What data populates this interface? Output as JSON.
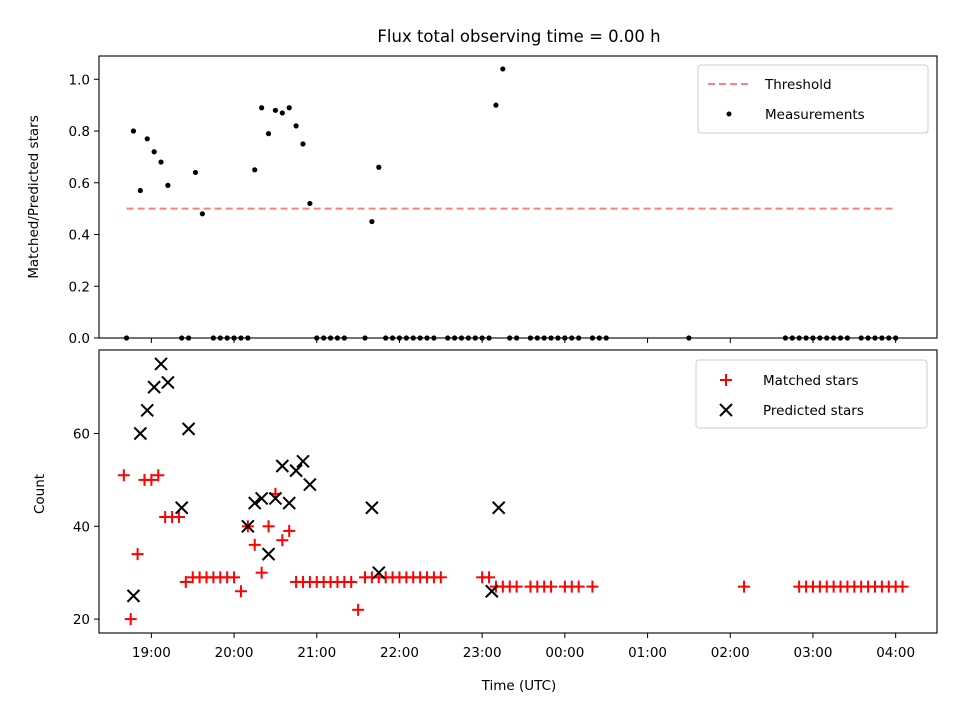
{
  "title": "Flux total observing time = 0.00 h",
  "xlabel": "Time (UTC)",
  "colors": {
    "threshold": "#ff7f7f",
    "measurements": "#000000",
    "matched": "#ff0000",
    "predicted": "#000000"
  },
  "chart_data": [
    {
      "type": "scatter",
      "panel": "top",
      "ylabel": "Matched/Predicted stars",
      "xlim": [
        "18:22",
        "04:30"
      ],
      "ylim": [
        0,
        1.09
      ],
      "yticks": [
        0.0,
        0.2,
        0.4,
        0.6,
        0.8,
        1.0
      ],
      "yticklabels": [
        "0.0",
        "0.2",
        "0.4",
        "0.6",
        "0.8",
        "1.0"
      ],
      "xticks": [
        "19:00",
        "20:00",
        "21:00",
        "22:00",
        "23:00",
        "00:00",
        "01:00",
        "02:00",
        "03:00",
        "04:00"
      ],
      "xticklabels_shown": false,
      "legend": {
        "position": "top-right",
        "entries": [
          "Threshold",
          "Measurements"
        ]
      },
      "series": [
        {
          "name": "Threshold",
          "kind": "dashed-line",
          "x": [
            "18:42",
            "04:00"
          ],
          "y": [
            0.5,
            0.5
          ]
        },
        {
          "name": "Measurements",
          "kind": "points",
          "x": [
            "18:42",
            "18:47",
            "18:52",
            "18:57",
            "19:02",
            "19:07",
            "19:12",
            "19:22",
            "19:27",
            "19:32",
            "19:37",
            "19:45",
            "19:50",
            "19:55",
            "20:00",
            "20:05",
            "20:10",
            "20:15",
            "20:20",
            "20:25",
            "20:30",
            "20:35",
            "20:40",
            "20:45",
            "20:50",
            "20:55",
            "21:00",
            "21:05",
            "21:10",
            "21:15",
            "21:20",
            "21:35",
            "21:40",
            "21:45",
            "21:50",
            "21:55",
            "22:00",
            "22:05",
            "22:10",
            "22:15",
            "22:20",
            "22:25",
            "22:35",
            "22:40",
            "22:45",
            "22:50",
            "22:55",
            "23:00",
            "23:05",
            "23:10",
            "23:15",
            "23:20",
            "23:25",
            "23:35",
            "23:40",
            "23:45",
            "23:50",
            "23:55",
            "00:00",
            "00:05",
            "00:10",
            "00:20",
            "00:25",
            "00:30",
            "01:30",
            "02:40",
            "02:45",
            "02:50",
            "02:55",
            "03:00",
            "03:05",
            "03:10",
            "03:15",
            "03:20",
            "03:25",
            "03:35",
            "03:40",
            "03:45",
            "03:50",
            "03:55",
            "04:00"
          ],
          "y": [
            0,
            0.8,
            0.57,
            0.77,
            0.72,
            0.68,
            0.59,
            0,
            0,
            0.64,
            0.48,
            0,
            0,
            0,
            0,
            0,
            0,
            0.65,
            0.89,
            0.79,
            0.88,
            0.87,
            0.89,
            0.82,
            0.75,
            0.52,
            0,
            0,
            0,
            0,
            0,
            0,
            0.45,
            0.66,
            0,
            0,
            0,
            0,
            0,
            0,
            0,
            0,
            0,
            0,
            0,
            0,
            0,
            0,
            0,
            0.9,
            1.04,
            0,
            0,
            0,
            0,
            0,
            0,
            0,
            0,
            0,
            0,
            0,
            0,
            0,
            0,
            0,
            0,
            0,
            0,
            0,
            0,
            0,
            0,
            0,
            0,
            0,
            0,
            0,
            0,
            0,
            0
          ]
        }
      ]
    },
    {
      "type": "scatter",
      "panel": "bottom",
      "ylabel": "Count",
      "xlim": [
        "18:22",
        "04:30"
      ],
      "ylim": [
        17,
        78
      ],
      "yticks": [
        20,
        40,
        60
      ],
      "yticklabels": [
        "20",
        "40",
        "60"
      ],
      "xticks": [
        "19:00",
        "20:00",
        "21:00",
        "22:00",
        "23:00",
        "00:00",
        "01:00",
        "02:00",
        "03:00",
        "04:00"
      ],
      "xticklabels": [
        "19:00",
        "20:00",
        "21:00",
        "22:00",
        "23:00",
        "00:00",
        "01:00",
        "02:00",
        "03:00",
        "04:00"
      ],
      "legend": {
        "position": "top-right",
        "entries": [
          "Matched stars",
          "Predicted stars"
        ]
      },
      "series": [
        {
          "name": "Matched stars",
          "marker": "+",
          "x": [
            "18:40",
            "18:45",
            "18:50",
            "18:55",
            "19:00",
            "19:05",
            "19:10",
            "19:15",
            "19:20",
            "19:25",
            "19:30",
            "19:35",
            "19:40",
            "19:45",
            "19:50",
            "19:55",
            "20:00",
            "20:05",
            "20:10",
            "20:15",
            "20:20",
            "20:25",
            "20:30",
            "20:35",
            "20:40",
            "20:45",
            "20:50",
            "20:55",
            "21:00",
            "21:05",
            "21:10",
            "21:15",
            "21:20",
            "21:25",
            "21:30",
            "21:35",
            "21:40",
            "21:45",
            "21:50",
            "21:55",
            "22:00",
            "22:05",
            "22:10",
            "22:15",
            "22:20",
            "22:25",
            "22:30",
            "23:00",
            "23:05",
            "23:10",
            "23:15",
            "23:20",
            "23:25",
            "23:35",
            "23:40",
            "23:45",
            "23:50",
            "00:00",
            "00:05",
            "00:10",
            "00:20",
            "02:10",
            "02:50",
            "02:55",
            "03:00",
            "03:05",
            "03:10",
            "03:15",
            "03:20",
            "03:25",
            "03:30",
            "03:35",
            "03:40",
            "03:45",
            "03:50",
            "03:55",
            "04:00",
            "04:05"
          ],
          "y": [
            51,
            20,
            34,
            50,
            50,
            51,
            42,
            42,
            42,
            28,
            29,
            29,
            29,
            29,
            29,
            29,
            29,
            26,
            40,
            36,
            30,
            40,
            47,
            37,
            39,
            28,
            28,
            28,
            28,
            28,
            28,
            28,
            28,
            28,
            22,
            29,
            29,
            29,
            29,
            29,
            29,
            29,
            29,
            29,
            29,
            29,
            29,
            29,
            29,
            27,
            27,
            27,
            27,
            27,
            27,
            27,
            27,
            27,
            27,
            27,
            27,
            27,
            27,
            27,
            27,
            27,
            27,
            27,
            27,
            27,
            27,
            27,
            27,
            27,
            27,
            27,
            27,
            27
          ]
        },
        {
          "name": "Predicted stars",
          "marker": "x",
          "x": [
            "18:47",
            "18:52",
            "18:57",
            "19:02",
            "19:07",
            "19:12",
            "19:22",
            "19:27",
            "20:10",
            "20:15",
            "20:20",
            "20:25",
            "20:30",
            "20:35",
            "20:40",
            "20:45",
            "20:50",
            "20:55",
            "21:40",
            "21:45",
            "23:07",
            "23:12"
          ],
          "y": [
            25,
            60,
            65,
            70,
            75,
            71,
            44,
            61,
            40,
            45,
            46,
            34,
            46,
            53,
            45,
            52,
            54,
            49,
            44,
            30,
            26,
            44
          ]
        }
      ]
    }
  ]
}
